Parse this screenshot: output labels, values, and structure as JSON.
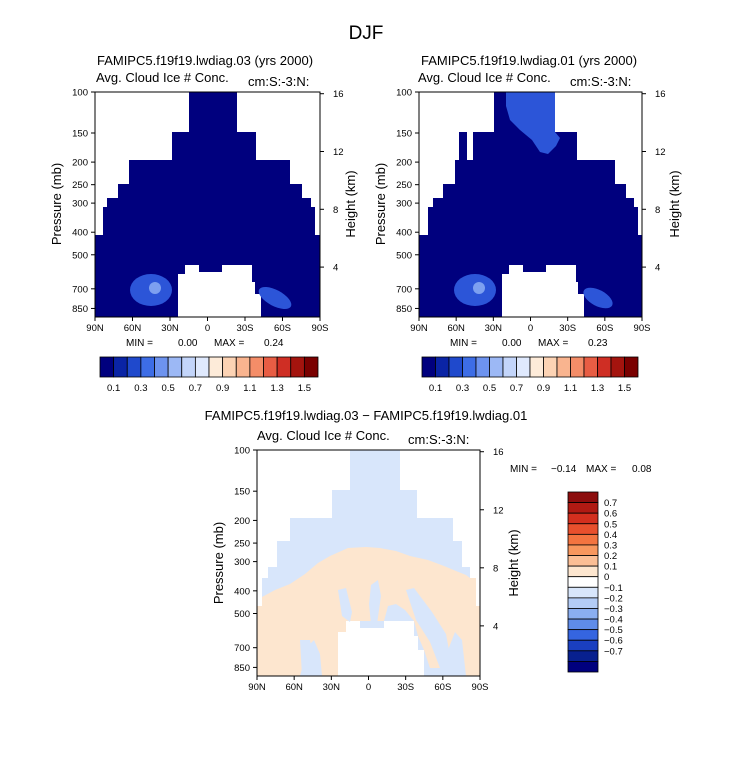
{
  "figure_title": "DJF",
  "panels": [
    {
      "title": "FAMIPC5.f19f19.lwdiag.03 (yrs 2000)",
      "subtitle": "Avg. Cloud Ice # Conc.",
      "units": "cm:S:-3:N:",
      "min_label": "MIN =",
      "min_value": "0.00",
      "max_label": "MAX =",
      "max_value": "0.24",
      "ylabel": "Pressure (mb)",
      "ylabel_right": "Height (km)"
    },
    {
      "title": "FAMIPC5.f19f19.lwdiag.01 (yrs 2000)",
      "subtitle": "Avg. Cloud Ice # Conc.",
      "units": "cm:S:-3:N:",
      "min_label": "MIN =",
      "min_value": "0.00",
      "max_label": "MAX =",
      "max_value": "0.23",
      "ylabel": "Pressure (mb)",
      "ylabel_right": "Height (km)"
    },
    {
      "title": "FAMIPC5.f19f19.lwdiag.03 − FAMIPC5.f19f19.lwdiag.01",
      "subtitle": "Avg. Cloud Ice # Conc.",
      "units": "cm:S:-3:N:",
      "min_label": "MIN =",
      "min_value": "−0.14",
      "max_label": "MAX =",
      "max_value": "0.08",
      "ylabel": "Pressure (mb)",
      "ylabel_right": "Height (km)"
    }
  ],
  "chart_data": [
    {
      "type": "heatmap",
      "title": "FAMIPC5.f19f19.lwdiag.03 (yrs 2000)",
      "field": "Avg. Cloud Ice # Conc. (cm-3)",
      "x_ticks": [
        "90N",
        "60N",
        "30N",
        "0",
        "30S",
        "60S",
        "90S"
      ],
      "x_values": [
        90,
        60,
        30,
        0,
        -30,
        -60,
        -90
      ],
      "y_ticks": [
        "100",
        "150",
        "200",
        "250",
        "300",
        "400",
        "500",
        "700",
        "850"
      ],
      "y_values": [
        100,
        150,
        200,
        250,
        300,
        400,
        500,
        700,
        850
      ],
      "ylim": [
        100,
        925
      ],
      "right_ticks": [
        "16",
        "12",
        "8",
        "4"
      ],
      "right_values": [
        16,
        12,
        8,
        4
      ],
      "min": 0.0,
      "max": 0.24
    },
    {
      "type": "heatmap",
      "title": "FAMIPC5.f19f19.lwdiag.01 (yrs 2000)",
      "field": "Avg. Cloud Ice # Conc. (cm-3)",
      "x_ticks": [
        "90N",
        "60N",
        "30N",
        "0",
        "30S",
        "60S",
        "90S"
      ],
      "x_values": [
        90,
        60,
        30,
        0,
        -30,
        -60,
        -90
      ],
      "y_ticks": [
        "100",
        "150",
        "200",
        "250",
        "300",
        "400",
        "500",
        "700",
        "850"
      ],
      "y_values": [
        100,
        150,
        200,
        250,
        300,
        400,
        500,
        700,
        850
      ],
      "ylim": [
        100,
        925
      ],
      "right_ticks": [
        "16",
        "12",
        "8",
        "4"
      ],
      "right_values": [
        16,
        12,
        8,
        4
      ],
      "min": 0.0,
      "max": 0.23
    },
    {
      "type": "heatmap",
      "title": "FAMIPC5.f19f19.lwdiag.03 − FAMIPC5.f19f19.lwdiag.01",
      "field": "Difference in Avg. Cloud Ice # Conc. (cm-3)",
      "x_ticks": [
        "90N",
        "60N",
        "30N",
        "0",
        "30S",
        "60S",
        "90S"
      ],
      "x_values": [
        90,
        60,
        30,
        0,
        -30,
        -60,
        -90
      ],
      "y_ticks": [
        "100",
        "150",
        "200",
        "250",
        "300",
        "400",
        "500",
        "700",
        "850"
      ],
      "y_values": [
        100,
        150,
        200,
        250,
        300,
        400,
        500,
        700,
        850
      ],
      "ylim": [
        100,
        925
      ],
      "right_ticks": [
        "16",
        "12",
        "8",
        "4"
      ],
      "right_values": [
        16,
        12,
        8,
        4
      ],
      "min": -0.14,
      "max": 0.08
    }
  ],
  "colorbar_abs": {
    "labels": [
      "0.1",
      "0.3",
      "0.5",
      "0.7",
      "0.9",
      "1.1",
      "1.3",
      "1.5"
    ],
    "colors": [
      "#00007e",
      "#0a24a5",
      "#1f49cc",
      "#3d6de6",
      "#6d93ef",
      "#9cb8f5",
      "#c3d5fa",
      "#dfe9fd",
      "#fdebd9",
      "#fcd3b4",
      "#f9b48f",
      "#f48d68",
      "#e85d44",
      "#cf2e24",
      "#a4140e",
      "#7a0000"
    ]
  },
  "colorbar_diff": {
    "labels": [
      "0.7",
      "0.6",
      "0.5",
      "0.4",
      "0.3",
      "0.2",
      "0.1",
      "0",
      "−0.1",
      "−0.2",
      "−0.3",
      "−0.4",
      "−0.5",
      "−0.6",
      "−0.7"
    ],
    "colors": [
      "#8c0d0d",
      "#b01a13",
      "#d32f1e",
      "#e8502d",
      "#f37440",
      "#f8975e",
      "#fbbe95",
      "#fde6cf",
      "#ffffff",
      "#d8e6fb",
      "#b3ccf6",
      "#8aaef0",
      "#5f8ce9",
      "#3565e0",
      "#1a3fc0",
      "#08208f",
      "#00007e"
    ]
  },
  "colors": {
    "fill_base": "#00007e",
    "blob": "#2c55d8",
    "blob_light": "#7da0f0",
    "diff_blue": "#d8e6fb",
    "diff_peach": "#fde6cf"
  }
}
